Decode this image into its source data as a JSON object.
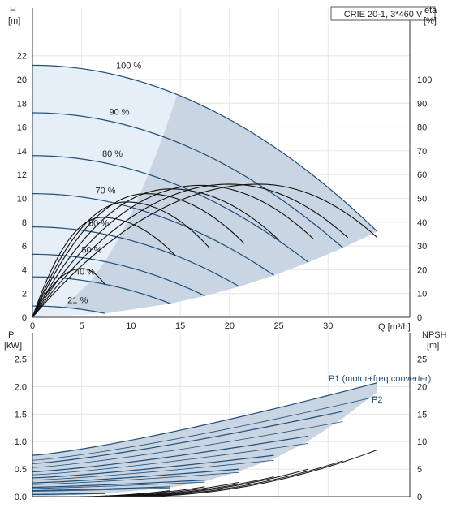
{
  "legend_box": "CRIE 20-1, 3*460 V",
  "axes": {
    "top_left_label": "H",
    "top_left_unit": "[m]",
    "top_right_label": "eta",
    "top_right_unit": "[%]",
    "bottom_left_label": "P",
    "bottom_left_unit": "[kW]",
    "bottom_right_label": "NPSH",
    "bottom_right_unit": "[m]",
    "x_label": "Q [m³/h]"
  },
  "chart_data": [
    {
      "type": "line",
      "title": "CRIE 20-1, 3*460 V",
      "xlabel": "Q [m³/h]",
      "ylabel": "H [m]",
      "y2label": "eta [%]",
      "xlim": [
        0,
        35
      ],
      "ylim": [
        0,
        24
      ],
      "y2lim": [
        0,
        115
      ],
      "x_ticks": [
        "0",
        "5",
        "10",
        "15",
        "20",
        "25",
        "30"
      ],
      "y_ticks": [
        "0",
        "2",
        "4",
        "6",
        "8",
        "10",
        "12",
        "14",
        "16",
        "18",
        "20",
        "22"
      ],
      "y2_ticks": [
        "0",
        "10",
        "20",
        "30",
        "40",
        "50",
        "60",
        "70",
        "80",
        "90",
        "100"
      ],
      "grid": true,
      "speed_curves": [
        {
          "label": "100 %",
          "h0": 21.2,
          "qmax": 35.0
        },
        {
          "label": "90 %",
          "h0": 17.2,
          "qmax": 31.5
        },
        {
          "label": "80 %",
          "h0": 13.6,
          "qmax": 28.0
        },
        {
          "label": "70 %",
          "h0": 10.4,
          "qmax": 24.5
        },
        {
          "label": "60 %",
          "h0": 7.6,
          "qmax": 21.0
        },
        {
          "label": "50 %",
          "h0": 5.3,
          "qmax": 17.5
        },
        {
          "label": "40 %",
          "h0": 3.4,
          "qmax": 14.0
        },
        {
          "label": "21 %",
          "h0": 0.95,
          "qmax": 7.4
        }
      ],
      "efficiency_peaks": [
        {
          "q_start": 0,
          "q_end": 7.4,
          "peak_q": 5.0,
          "peak_eta": 20.5,
          "end_eta": 13.5
        },
        {
          "q_start": 0,
          "q_end": 14.5,
          "peak_q": 7.0,
          "peak_eta": 42.0,
          "end_eta": 26.0
        },
        {
          "q_start": 0,
          "q_end": 18.0,
          "peak_q": 9.5,
          "peak_eta": 48.5,
          "end_eta": 29.0
        },
        {
          "q_start": 0,
          "q_end": 21.5,
          "peak_q": 11.5,
          "peak_eta": 52.0,
          "end_eta": 31.0
        },
        {
          "q_start": 0,
          "q_end": 25.0,
          "peak_q": 14.0,
          "peak_eta": 54.0,
          "end_eta": 32.5
        },
        {
          "q_start": 0,
          "q_end": 28.5,
          "peak_q": 17.0,
          "peak_eta": 55.5,
          "end_eta": 33.0
        },
        {
          "q_start": 0,
          "q_end": 32.0,
          "peak_q": 20.0,
          "peak_eta": 56.0,
          "end_eta": 33.5
        },
        {
          "q_start": 0,
          "q_end": 35.0,
          "peak_q": 23.0,
          "peak_eta": 56.0,
          "end_eta": 33.5
        }
      ]
    },
    {
      "type": "line",
      "xlabel": "Q [m³/h]",
      "ylabel": "P [kW]",
      "y2label": "NPSH [m]",
      "xlim": [
        0,
        35
      ],
      "ylim": [
        0,
        2.8
      ],
      "y2lim": [
        0,
        28
      ],
      "y_ticks": [
        "0.0",
        "0.5",
        "1.0",
        "1.5",
        "2.0",
        "2.5"
      ],
      "y2_ticks": [
        "0",
        "5",
        "10",
        "15",
        "20",
        "25"
      ],
      "grid": true,
      "labels": [
        "P1 (motor+freq.converter)",
        "P2"
      ],
      "power_curves": [
        {
          "p0": 0.75,
          "p1": 2.07,
          "qmax": 35.0
        },
        {
          "p0": 0.6,
          "p1": 1.55,
          "qmax": 31.5
        },
        {
          "p0": 0.45,
          "p1": 1.1,
          "qmax": 28.0
        },
        {
          "p0": 0.34,
          "p1": 0.75,
          "qmax": 24.5
        },
        {
          "p0": 0.25,
          "p1": 0.5,
          "qmax": 21.0
        },
        {
          "p0": 0.17,
          "p1": 0.3,
          "qmax": 17.5
        },
        {
          "p0": 0.11,
          "p1": 0.18,
          "qmax": 14.0
        },
        {
          "p0": 0.04,
          "p1": 0.06,
          "qmax": 7.4
        }
      ],
      "npsh_curves": [
        {
          "q_start": 10,
          "q_end": 35.0,
          "n_end": 8.5
        },
        {
          "q_start": 9,
          "q_end": 31.5,
          "n_end": 6.5
        },
        {
          "q_start": 8,
          "q_end": 28.0,
          "n_end": 5.0
        },
        {
          "q_start": 7,
          "q_end": 24.5,
          "n_end": 3.6
        },
        {
          "q_start": 6,
          "q_end": 21.0,
          "n_end": 2.6
        },
        {
          "q_start": 5,
          "q_end": 17.5,
          "n_end": 1.8
        },
        {
          "q_start": 4,
          "q_end": 14.0,
          "n_end": 1.1
        }
      ]
    }
  ]
}
